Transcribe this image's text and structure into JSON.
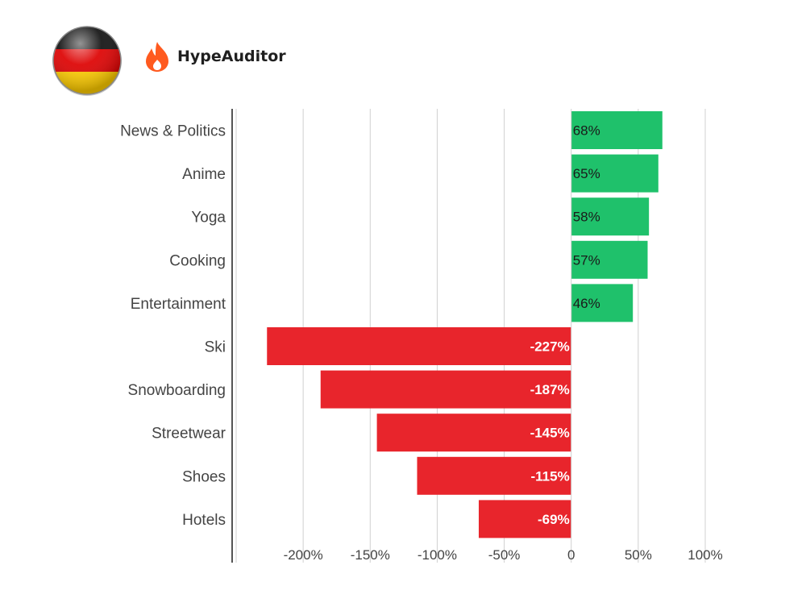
{
  "header": {
    "flag_icon": "germany-flag-icon",
    "brand_icon": "flame-icon",
    "brand_name": "HypeAuditor"
  },
  "colors": {
    "positive": "#1fc16b",
    "negative": "#e8252c",
    "grid": "#d0d0d0",
    "axis": "#555555"
  },
  "chart_data": {
    "type": "bar",
    "orientation": "horizontal",
    "categories": [
      "News & Politics",
      "Anime",
      "Yoga",
      "Cooking",
      "Entertainment",
      "Ski",
      "Snowboarding",
      "Streetwear",
      "Shoes",
      "Hotels"
    ],
    "values": [
      68,
      65,
      58,
      57,
      46,
      -227,
      -187,
      -145,
      -115,
      -69
    ],
    "value_labels": [
      "68%",
      "65%",
      "58%",
      "57%",
      "46%",
      "-227%",
      "-187%",
      "-145%",
      "-115%",
      "-69%"
    ],
    "xlim": [
      -250,
      100
    ],
    "x_ticks": [
      -250,
      -200,
      -150,
      -100,
      -50,
      0,
      50,
      100
    ],
    "x_tick_labels": [
      "",
      "-200%",
      "-150%",
      "-100%",
      "-50%",
      "0",
      "50%",
      "100%"
    ],
    "grid": true
  }
}
